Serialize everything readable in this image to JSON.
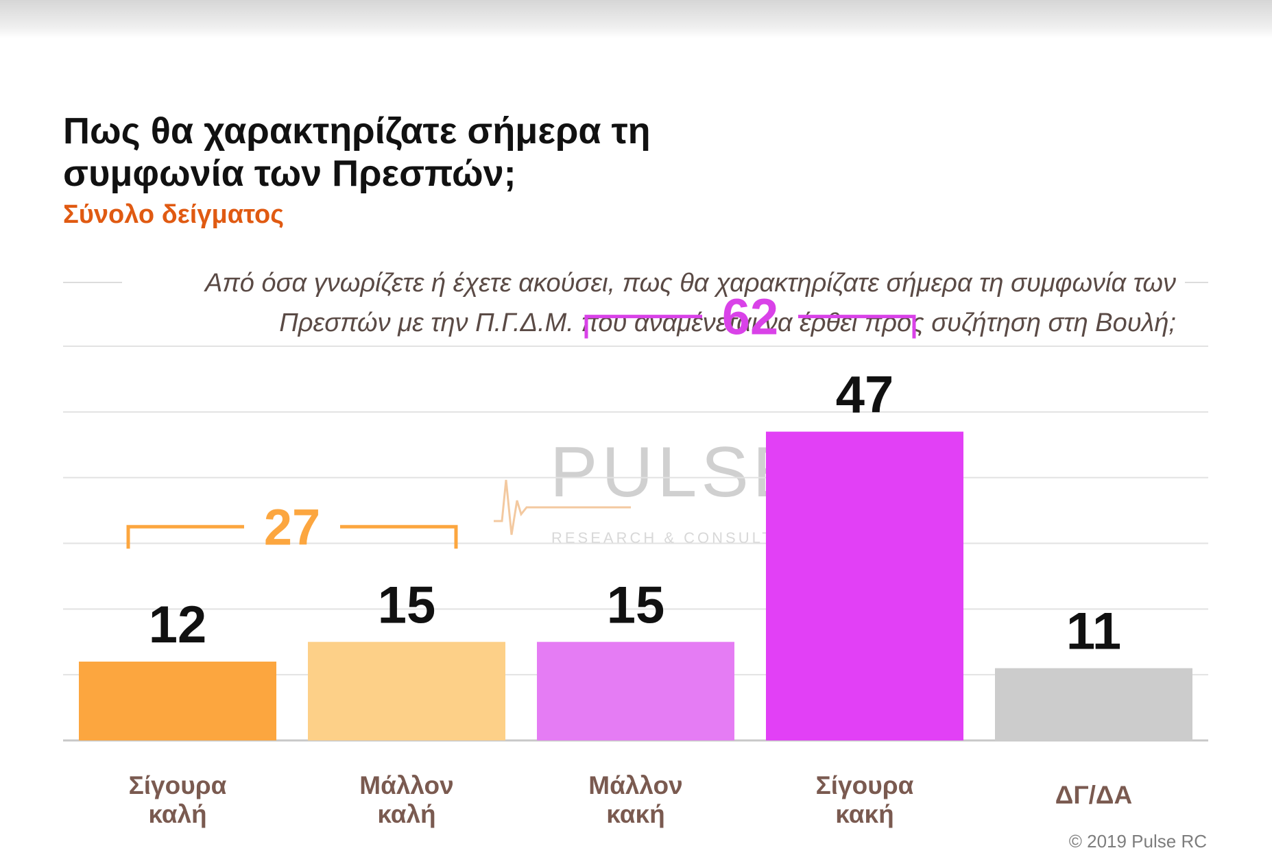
{
  "chart_data": {
    "type": "bar",
    "title": "Πως θα χαρακτηρίζατε σήμερα τη συμφωνία των Πρεσπών;",
    "subtitle": "Σύνολο δείγματος",
    "question": "Από όσα γνωρίζετε ή έχετε ακούσει, πως θα χαρακτηρίζατε σήμερα τη συμφωνία των Πρεσπών με την Π.Γ.Δ.Μ. που αναμένεται να έρθει προς συζήτηση στη Βουλή;",
    "categories": [
      [
        "Σίγουρα",
        "καλή"
      ],
      [
        "Μάλλον",
        "καλή"
      ],
      [
        "Μάλλον",
        "κακή"
      ],
      [
        "Σίγουρα",
        "κακή"
      ],
      [
        "ΔΓ/ΔΑ"
      ]
    ],
    "values": [
      12,
      15,
      15,
      47,
      11
    ],
    "bar_colors": [
      "#fca63f",
      "#fdd088",
      "#e57cf4",
      "#e240f6",
      "#cccccc"
    ],
    "ylim": [
      0,
      60
    ],
    "grid": true,
    "groups": [
      {
        "label": "27",
        "from": 0,
        "to": 1,
        "color": "#fca63f"
      },
      {
        "label": "62",
        "from": 2,
        "to": 3,
        "color": "#d942e8"
      }
    ],
    "watermark": {
      "brand": "PULSE",
      "tagline": "RESEARCH & CONSULTING"
    },
    "copyright": "© 2019 Pulse RC"
  }
}
